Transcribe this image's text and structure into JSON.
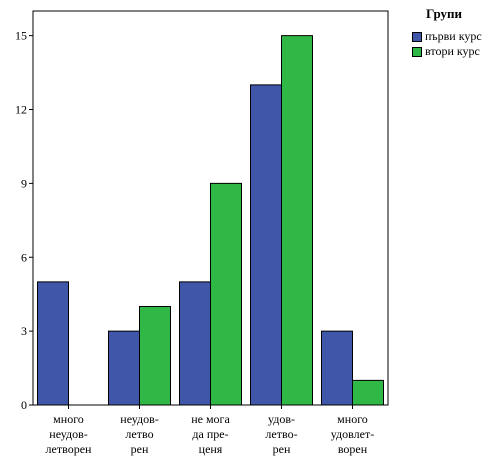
{
  "chart_data": {
    "type": "bar",
    "categories": [
      [
        "много",
        "неудов-",
        "летворен"
      ],
      [
        "неудов-",
        "летво",
        "рен"
      ],
      [
        "не мога",
        "да пре-",
        "ценя"
      ],
      [
        "удов-",
        "летво-",
        "рен"
      ],
      [
        "много",
        "удовлет-",
        "ворен"
      ]
    ],
    "series": [
      {
        "name": "първи курс",
        "color": "#3f56a9",
        "values": [
          5,
          3,
          5,
          13,
          3
        ]
      },
      {
        "name": "втори курс",
        "color": "#2fb845",
        "values": [
          0,
          4,
          9,
          15,
          1
        ]
      }
    ],
    "ylim": [
      0,
      16
    ],
    "yticks": [
      0,
      3,
      6,
      9,
      12,
      15
    ],
    "grid": false,
    "legend": {
      "title": "Групи",
      "placement": "top-right"
    }
  }
}
